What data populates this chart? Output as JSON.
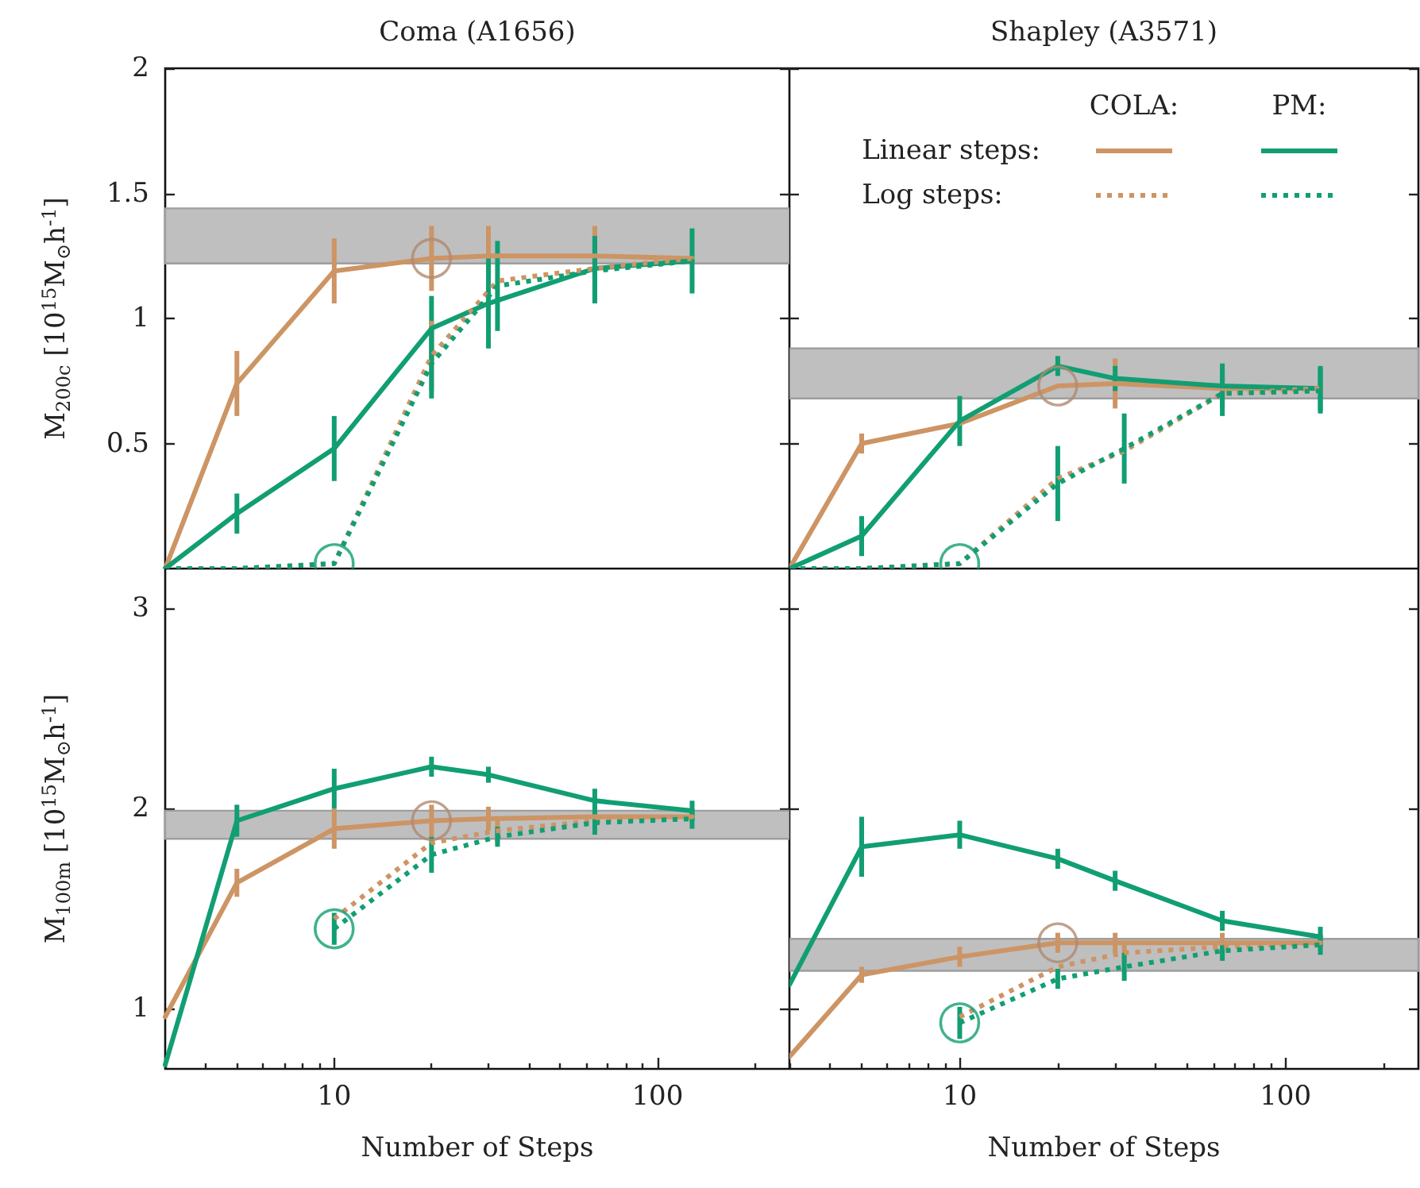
{
  "chart_data": [
    {
      "type": "line",
      "title": "Coma (A1656)",
      "ylabel": "M$_{200c}$ [10$^{15}$M$_{⊙}$h$^{-1}$]",
      "xlim": [
        3,
        256
      ],
      "ylim": [
        0,
        2
      ],
      "yticks": [
        0.5,
        1,
        1.5,
        2
      ],
      "tick_labels": "y",
      "marker": "none",
      "log": "x",
      "bands": [
        {
          "axis": "y",
          "from": 1.22,
          "to": 1.44,
          "color": "#bfbfbf"
        }
      ],
      "series": [
        {
          "color": "#cd9464",
          "line_style": "solid",
          "x": [
            3,
            5,
            10,
            20,
            30,
            64,
            128
          ],
          "values": [
            0,
            0.74,
            1.19,
            1.24,
            1.25,
            1.25,
            1.24
          ],
          "errors": [
            null,
            0.13,
            0.13,
            0.13,
            0.12,
            0.12,
            null
          ]
        },
        {
          "color": "#119e73",
          "line_style": "solid",
          "x": [
            3,
            5,
            10,
            20,
            30,
            64,
            128
          ],
          "values": [
            0,
            0.22,
            0.48,
            0.96,
            1.06,
            1.2,
            1.23
          ],
          "errors": [
            null,
            0.08,
            0.13,
            0.13,
            0.18,
            0.13,
            0.13
          ]
        },
        {
          "color": "#cd9464",
          "line_style": "dotted",
          "x": [
            3,
            5,
            10,
            20,
            32,
            64,
            128
          ],
          "values": [
            0,
            0,
            0.02,
            0.85,
            1.15,
            1.2,
            1.24
          ],
          "errors": [
            null,
            null,
            null,
            0.14,
            null,
            null,
            null
          ]
        },
        {
          "color": "#119e73",
          "line_style": "dotted",
          "x": [
            3,
            5,
            10,
            20,
            32,
            64,
            128
          ],
          "values": [
            0,
            0,
            0.02,
            0.82,
            1.13,
            1.19,
            1.23
          ],
          "errors": [
            null,
            null,
            null,
            0.14,
            0.18,
            0.13,
            null
          ]
        },
        {
          "type": "scatter",
          "marker": "circle",
          "color": "#b08a70",
          "x": [
            20
          ],
          "values": [
            1.24
          ]
        },
        {
          "type": "scatter",
          "marker": "circle",
          "color": "#119e73",
          "x": [
            10
          ],
          "values": [
            0.02
          ]
        }
      ]
    },
    {
      "type": "line",
      "title": "Shapley (A3571)",
      "xlim": [
        3,
        256
      ],
      "ylim": [
        0,
        2
      ],
      "yticks": [
        0.5,
        1,
        1.5,
        2
      ],
      "tick_labels": false,
      "marker": "none",
      "log": "x",
      "annotations": [
        "COLA:",
        "PM:",
        "Linear steps:",
        "Log steps:"
      ],
      "bands": [
        {
          "axis": "y",
          "from": 0.68,
          "to": 0.88,
          "color": "#bfbfbf"
        }
      ],
      "series": [
        {
          "color": "#cd9464",
          "line_style": "solid",
          "x": [
            3,
            5,
            10,
            20,
            30,
            64,
            128
          ],
          "values": [
            0,
            0.5,
            0.58,
            0.73,
            0.74,
            0.72,
            0.72
          ],
          "errors": [
            null,
            0.04,
            null,
            null,
            0.1,
            null,
            null
          ]
        },
        {
          "color": "#119e73",
          "line_style": "solid",
          "x": [
            3,
            5,
            10,
            20,
            30,
            64,
            128
          ],
          "values": [
            0,
            0.13,
            0.59,
            0.81,
            0.76,
            0.73,
            0.72
          ],
          "errors": [
            null,
            0.08,
            0.1,
            0.04,
            0.05,
            0.09,
            0.09
          ]
        },
        {
          "color": "#cd9464",
          "line_style": "dotted",
          "x": [
            3,
            5,
            10,
            20,
            32,
            64,
            128
          ],
          "values": [
            0,
            0,
            0.02,
            0.36,
            0.47,
            0.7,
            0.72
          ],
          "errors": [
            null,
            null,
            null,
            null,
            null,
            null,
            null
          ]
        },
        {
          "color": "#119e73",
          "line_style": "dotted",
          "x": [
            3,
            5,
            10,
            20,
            32,
            64,
            128
          ],
          "values": [
            0,
            0,
            0.02,
            0.34,
            0.48,
            0.7,
            0.71
          ],
          "errors": [
            null,
            null,
            null,
            0.15,
            0.14,
            0.09,
            0.09
          ]
        },
        {
          "type": "scatter",
          "marker": "circle",
          "color": "#b08a70",
          "x": [
            20
          ],
          "values": [
            0.73
          ]
        },
        {
          "type": "scatter",
          "marker": "circle",
          "color": "#119e73",
          "x": [
            10
          ],
          "values": [
            0.02
          ]
        }
      ]
    },
    {
      "type": "line",
      "xlabel": "Number of Steps",
      "ylabel": "M$_{100m}$ [10$^{15}$M$_{⊙}$h$^{-1}$]",
      "xlim": [
        3,
        256
      ],
      "xticks": [
        {
          "value": 3,
          "label": null
        },
        {
          "value": 4,
          "label": null
        },
        {
          "value": 5,
          "label": null
        },
        {
          "value": 6,
          "label": null
        },
        {
          "value": 7,
          "label": null
        },
        {
          "value": 8,
          "label": null
        },
        {
          "value": 9,
          "label": null
        },
        {
          "value": 10,
          "label": "10"
        },
        {
          "value": 20,
          "label": null
        },
        {
          "value": 30,
          "label": null
        },
        {
          "value": 40,
          "label": null
        },
        {
          "value": 50,
          "label": null
        },
        {
          "value": 60,
          "label": null
        },
        {
          "value": 70,
          "label": null
        },
        {
          "value": 80,
          "label": null
        },
        {
          "value": 90,
          "label": null
        },
        {
          "value": 100,
          "label": "100"
        },
        {
          "value": 200,
          "label": null
        }
      ],
      "ylim": [
        0.7,
        3.2
      ],
      "yticks": [
        1,
        2,
        3
      ],
      "marker": "none",
      "log": "x",
      "bands": [
        {
          "axis": "y",
          "from": 1.85,
          "to": 1.99,
          "color": "#bfbfbf"
        }
      ],
      "series": [
        {
          "color": "#cd9464",
          "line_style": "solid",
          "x": [
            3,
            5,
            10,
            20,
            30,
            64,
            128
          ],
          "values": [
            0.96,
            1.63,
            1.9,
            1.94,
            1.95,
            1.96,
            1.96
          ],
          "errors": [
            null,
            0.07,
            0.1,
            0.08,
            0.06,
            null,
            null
          ]
        },
        {
          "color": "#119e73",
          "line_style": "solid",
          "x": [
            3,
            5,
            10,
            20,
            30,
            64,
            128
          ],
          "values": [
            0.72,
            1.94,
            2.1,
            2.21,
            2.17,
            2.04,
            1.99
          ],
          "errors": [
            null,
            0.08,
            0.1,
            0.05,
            0.04,
            0.06,
            0.05
          ]
        },
        {
          "color": "#cd9464",
          "line_style": "dotted",
          "x": [
            10,
            20,
            32,
            64,
            128
          ],
          "values": [
            1.45,
            1.83,
            1.89,
            1.94,
            1.96
          ],
          "errors": [
            null,
            null,
            0.06,
            null,
            null
          ]
        },
        {
          "color": "#119e73",
          "line_style": "dotted",
          "x": [
            10,
            20,
            32,
            64,
            128
          ],
          "values": [
            1.4,
            1.77,
            1.86,
            1.93,
            1.95
          ],
          "errors": [
            0.08,
            0.09,
            0.05,
            0.06,
            0.05
          ]
        },
        {
          "type": "scatter",
          "marker": "circle",
          "color": "#b08a70",
          "x": [
            20
          ],
          "values": [
            1.94
          ]
        },
        {
          "type": "scatter",
          "marker": "circle",
          "color": "#119e73",
          "x": [
            10
          ],
          "values": [
            1.4
          ]
        }
      ]
    },
    {
      "type": "line",
      "xlabel": "Number of Steps",
      "xlim": [
        3,
        256
      ],
      "xticks": [
        {
          "value": 3,
          "label": null
        },
        {
          "value": 4,
          "label": null
        },
        {
          "value": 5,
          "label": null
        },
        {
          "value": 6,
          "label": null
        },
        {
          "value": 7,
          "label": null
        },
        {
          "value": 8,
          "label": null
        },
        {
          "value": 9,
          "label": null
        },
        {
          "value": 10,
          "label": "10"
        },
        {
          "value": 20,
          "label": null
        },
        {
          "value": 30,
          "label": null
        },
        {
          "value": 40,
          "label": null
        },
        {
          "value": 50,
          "label": null
        },
        {
          "value": 60,
          "label": null
        },
        {
          "value": 70,
          "label": null
        },
        {
          "value": 80,
          "label": null
        },
        {
          "value": 90,
          "label": null
        },
        {
          "value": 100,
          "label": "100"
        },
        {
          "value": 200,
          "label": null
        }
      ],
      "ylim": [
        0.7,
        3.2
      ],
      "yticks": [
        1,
        2,
        3
      ],
      "tick_labels": "x",
      "marker": "none",
      "log": "x",
      "bands": [
        {
          "axis": "y",
          "from": 1.19,
          "to": 1.35,
          "color": "#bfbfbf"
        }
      ],
      "series": [
        {
          "color": "#cd9464",
          "line_style": "solid",
          "x": [
            3,
            5,
            10,
            20,
            30,
            64,
            128
          ],
          "values": [
            0.76,
            1.17,
            1.26,
            1.33,
            1.33,
            1.33,
            1.33
          ],
          "errors": [
            null,
            0.04,
            0.05,
            0.05,
            0.05,
            0.05,
            null
          ]
        },
        {
          "color": "#119e73",
          "line_style": "solid",
          "x": [
            3,
            5,
            10,
            20,
            30,
            64,
            128
          ],
          "values": [
            1.12,
            1.81,
            1.87,
            1.75,
            1.64,
            1.44,
            1.36
          ],
          "errors": [
            null,
            0.15,
            0.07,
            0.05,
            0.05,
            0.05,
            0.05
          ]
        },
        {
          "color": "#cd9464",
          "line_style": "dotted",
          "x": [
            10,
            20,
            32,
            64,
            128
          ],
          "values": [
            0.96,
            1.21,
            1.28,
            1.31,
            1.33
          ],
          "errors": [
            null,
            null,
            0.05,
            null,
            null
          ]
        },
        {
          "color": "#119e73",
          "line_style": "dotted",
          "x": [
            10,
            20,
            32,
            64,
            128
          ],
          "values": [
            0.93,
            1.15,
            1.21,
            1.29,
            1.32
          ],
          "errors": [
            0.08,
            0.05,
            0.07,
            0.05,
            0.05
          ]
        },
        {
          "type": "scatter",
          "marker": "circle",
          "color": "#b08a70",
          "x": [
            20
          ],
          "values": [
            1.33
          ]
        },
        {
          "type": "scatter",
          "marker": "circle",
          "color": "#119e73",
          "x": [
            10
          ],
          "values": [
            0.93
          ]
        }
      ]
    }
  ]
}
